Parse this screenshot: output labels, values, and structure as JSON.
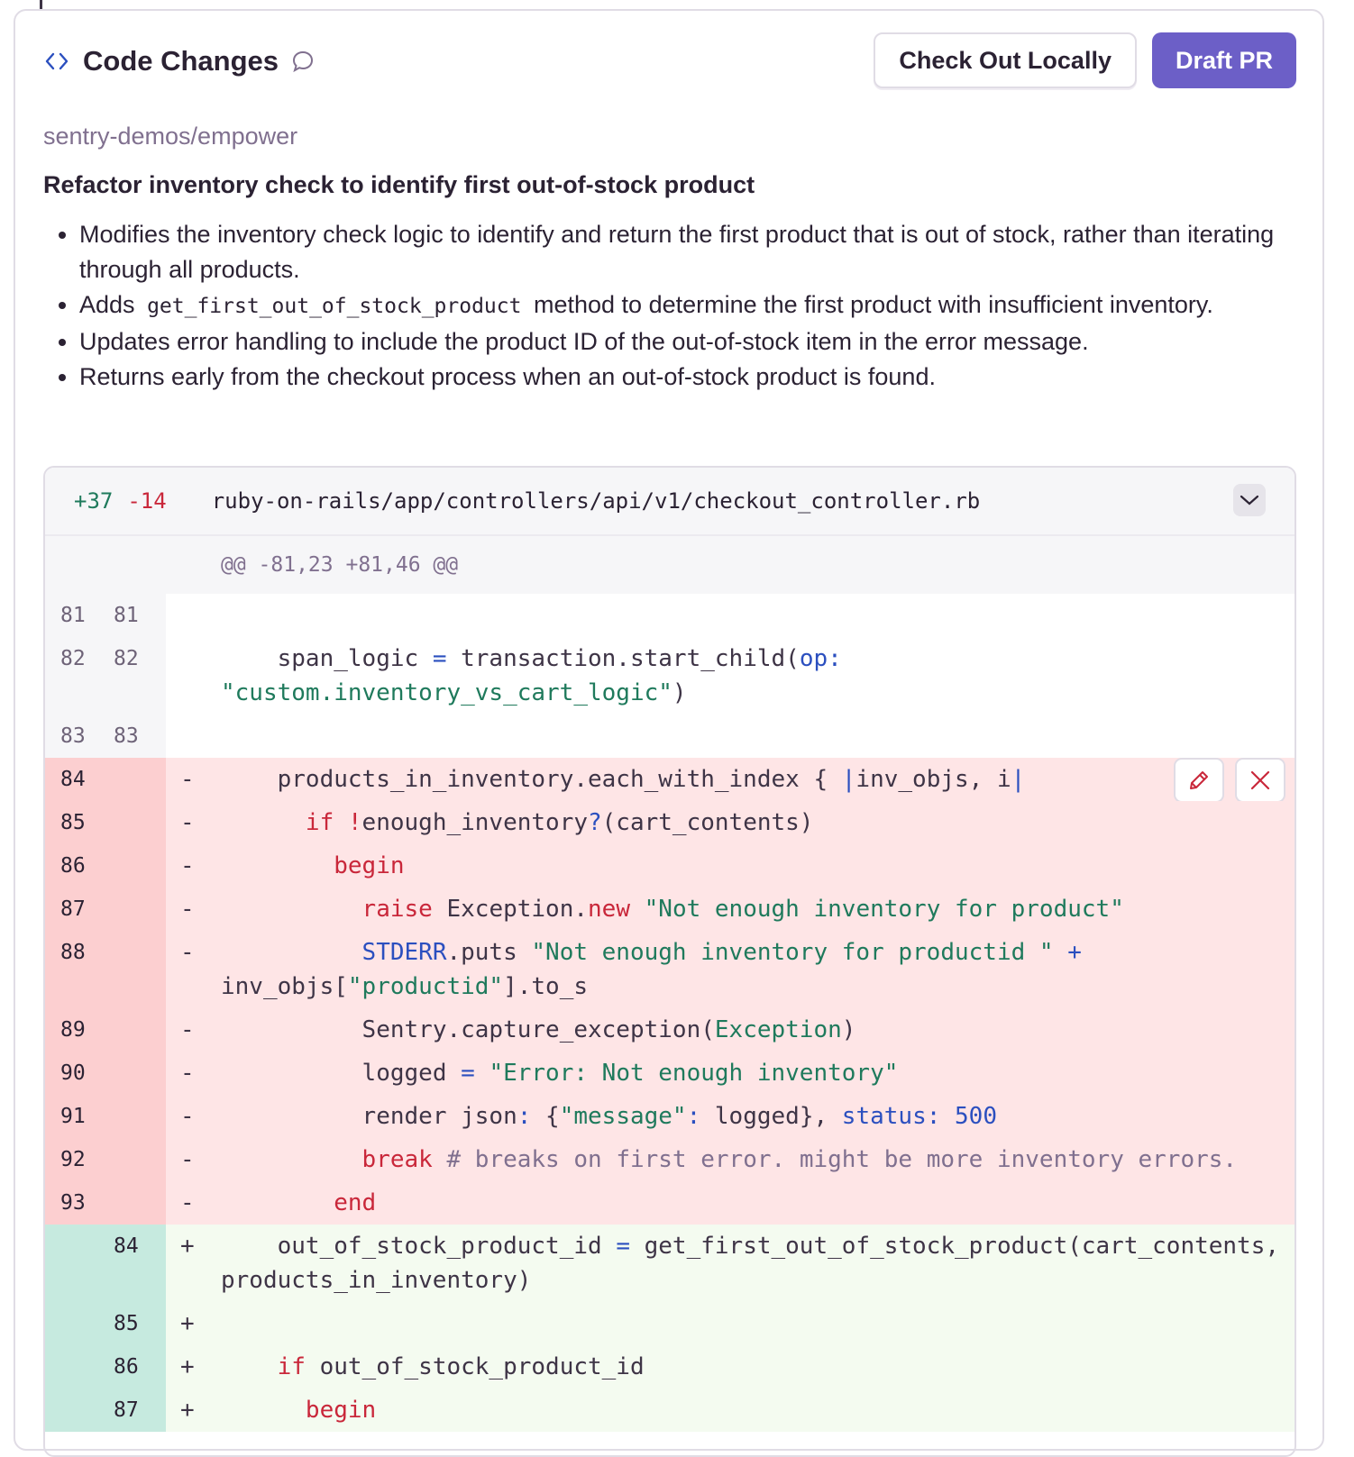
{
  "header": {
    "title": "Code Changes",
    "check_out_label": "Check Out Locally",
    "draft_pr_label": "Draft PR"
  },
  "repo": "sentry-demos/empower",
  "summary_title": "Refactor inventory check to identify first out-of-stock product",
  "bullets": [
    {
      "before": "Modifies the inventory check logic to identify and return the first product that is out of stock, rather than iterating through all products.",
      "code": "",
      "after": ""
    },
    {
      "before": "Adds",
      "code": "get_first_out_of_stock_product",
      "after": "method to determine the first product with insufficient inventory."
    },
    {
      "before": "Updates error handling to include the product ID of the out-of-stock item in the error message.",
      "code": "",
      "after": ""
    },
    {
      "before": "Returns early from the checkout process when an out-of-stock product is found.",
      "code": "",
      "after": ""
    }
  ],
  "diff": {
    "additions": "+37",
    "deletions": "-14",
    "file": "ruby-on-rails/app/controllers/api/v1/checkout_controller.rb",
    "hunk": "@@ -81,23 +81,46 @@",
    "lines": [
      {
        "type": "ctx",
        "old": "81",
        "new": "81",
        "sign": "",
        "tokens": []
      },
      {
        "type": "ctx",
        "old": "82",
        "new": "82",
        "sign": "",
        "tokens": [
          [
            "    span_logic ",
            ""
          ],
          [
            "=",
            "b"
          ],
          [
            " transaction.start_child(",
            ""
          ],
          [
            "op:",
            "b"
          ],
          [
            " ",
            ""
          ],
          [
            "\"custom.inventory_vs_cart_logic\"",
            "s"
          ],
          [
            ")",
            ""
          ]
        ]
      },
      {
        "type": "ctx",
        "old": "83",
        "new": "83",
        "sign": "",
        "tokens": []
      },
      {
        "type": "del",
        "old": "84",
        "new": "",
        "sign": "-",
        "actions": true,
        "tokens": [
          [
            "    products_in_inventory.each_with_index { ",
            ""
          ],
          [
            "|",
            "b"
          ],
          [
            "inv_objs, i",
            ""
          ],
          [
            "|",
            "b"
          ]
        ]
      },
      {
        "type": "del",
        "old": "85",
        "new": "",
        "sign": "-",
        "tokens": [
          [
            "      ",
            ""
          ],
          [
            "if",
            "k"
          ],
          [
            " ",
            ""
          ],
          [
            "!",
            "k"
          ],
          [
            "enough_inventory",
            ""
          ],
          [
            "?",
            "b"
          ],
          [
            "(cart_contents)",
            ""
          ]
        ]
      },
      {
        "type": "del",
        "old": "86",
        "new": "",
        "sign": "-",
        "tokens": [
          [
            "        ",
            ""
          ],
          [
            "begin",
            "k"
          ]
        ]
      },
      {
        "type": "del",
        "old": "87",
        "new": "",
        "sign": "-",
        "tokens": [
          [
            "          ",
            ""
          ],
          [
            "raise",
            "k"
          ],
          [
            " Exception.",
            ""
          ],
          [
            "new",
            "k"
          ],
          [
            " ",
            ""
          ],
          [
            "\"Not enough inventory for product\"",
            "s"
          ]
        ]
      },
      {
        "type": "del",
        "old": "88",
        "new": "",
        "sign": "-",
        "tokens": [
          [
            "          ",
            ""
          ],
          [
            "STDERR",
            "b"
          ],
          [
            ".puts ",
            ""
          ],
          [
            "\"Not enough inventory for productid \"",
            "s"
          ],
          [
            " ",
            ""
          ],
          [
            "+",
            "b"
          ],
          [
            " inv_objs[",
            ""
          ],
          [
            "\"productid\"",
            "s"
          ],
          [
            "].to_s",
            ""
          ]
        ]
      },
      {
        "type": "del",
        "old": "89",
        "new": "",
        "sign": "-",
        "tokens": [
          [
            "          Sentry.capture_exception(",
            ""
          ],
          [
            "Exception",
            "s"
          ],
          [
            ")",
            ""
          ]
        ]
      },
      {
        "type": "del",
        "old": "90",
        "new": "",
        "sign": "-",
        "tokens": [
          [
            "          logged ",
            ""
          ],
          [
            "=",
            "b"
          ],
          [
            " ",
            ""
          ],
          [
            "\"Error: Not enough inventory\"",
            "s"
          ]
        ]
      },
      {
        "type": "del",
        "old": "91",
        "new": "",
        "sign": "-",
        "tokens": [
          [
            "          render json",
            ""
          ],
          [
            ":",
            "b"
          ],
          [
            " {",
            ""
          ],
          [
            "\"message\"",
            "s"
          ],
          [
            ":",
            "b"
          ],
          [
            " logged}, ",
            ""
          ],
          [
            "status:",
            "b"
          ],
          [
            " ",
            ""
          ],
          [
            "500",
            "b"
          ]
        ]
      },
      {
        "type": "del",
        "old": "92",
        "new": "",
        "sign": "-",
        "tokens": [
          [
            "          ",
            ""
          ],
          [
            "break",
            "k"
          ],
          [
            " # breaks on first error. might be more inventory errors.",
            "c"
          ]
        ]
      },
      {
        "type": "del",
        "old": "93",
        "new": "",
        "sign": "-",
        "tokens": [
          [
            "        ",
            ""
          ],
          [
            "end",
            "k"
          ]
        ]
      },
      {
        "type": "add",
        "old": "",
        "new": "84",
        "sign": "+",
        "tokens": [
          [
            "    out_of_stock_product_id ",
            ""
          ],
          [
            "=",
            "b"
          ],
          [
            " get_first_out_of_stock_product(cart_contents, products_in_inventory)",
            ""
          ]
        ]
      },
      {
        "type": "add",
        "old": "",
        "new": "85",
        "sign": "+",
        "tokens": []
      },
      {
        "type": "add",
        "old": "",
        "new": "86",
        "sign": "+",
        "tokens": [
          [
            "    ",
            ""
          ],
          [
            "if",
            "k"
          ],
          [
            " out_of_stock_product_id",
            ""
          ]
        ]
      },
      {
        "type": "add",
        "old": "",
        "new": "87",
        "sign": "+",
        "tokens": [
          [
            "      ",
            ""
          ],
          [
            "begin",
            "k"
          ]
        ]
      }
    ]
  },
  "colors": {
    "accent": "#6c5fc7",
    "added": "#1f7a5c",
    "removed": "#c9273a",
    "keyword": "#c9273a",
    "string": "#1f7a5c",
    "symbol": "#2b4fbf"
  }
}
